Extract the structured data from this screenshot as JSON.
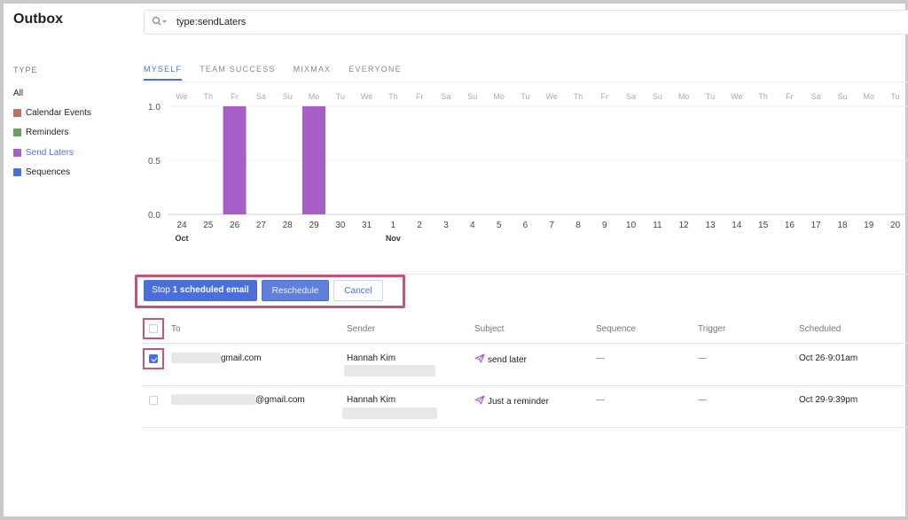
{
  "app": {
    "title": "Outbox"
  },
  "search": {
    "value": "type:sendLaters"
  },
  "sidebar": {
    "heading": "TYPE",
    "items": [
      {
        "label": "All",
        "color": ""
      },
      {
        "label": "Calendar Events",
        "color": "#c96a6a"
      },
      {
        "label": "Reminders",
        "color": "#6a9e63"
      },
      {
        "label": "Send Laters",
        "color": "#a55fc6"
      },
      {
        "label": "Sequences",
        "color": "#4a6fd8"
      }
    ]
  },
  "tabs": [
    "MYSELF",
    "TEAM SUCCESS",
    "MIXMAX",
    "EVERYONE"
  ],
  "chart_data": {
    "type": "bar",
    "categories": [
      "24",
      "25",
      "26",
      "27",
      "28",
      "29",
      "30",
      "31",
      "1",
      "2",
      "3",
      "4",
      "5",
      "6",
      "7",
      "8",
      "9",
      "10",
      "11",
      "12",
      "13",
      "14",
      "15",
      "16",
      "17",
      "18",
      "19",
      "20"
    ],
    "weekdays": [
      "We",
      "Th",
      "Fr",
      "Sa",
      "Su",
      "Mo",
      "Tu",
      "We",
      "Th",
      "Fr",
      "Sa",
      "Su",
      "Mo",
      "Tu",
      "We",
      "Th",
      "Fr",
      "Sa",
      "Su",
      "Mo",
      "Tu",
      "We",
      "Th",
      "Fr",
      "Sa",
      "Su",
      "Mo",
      "Tu"
    ],
    "month_labels": [
      {
        "index": 0,
        "label": "Oct"
      },
      {
        "index": 8,
        "label": "Nov"
      }
    ],
    "values": [
      0,
      0,
      1,
      0,
      0,
      1,
      0,
      0,
      0,
      0,
      0,
      0,
      0,
      0,
      0,
      0,
      0,
      0,
      0,
      0,
      0,
      0,
      0,
      0,
      0,
      0,
      0,
      0
    ],
    "yticks": [
      "1.0",
      "0.5",
      "0.0"
    ],
    "ylim": [
      0,
      1
    ],
    "bar_color": "#a55fc6"
  },
  "actions": {
    "stop_prefix": "Stop ",
    "stop_count": "1",
    "stop_suffix": " scheduled email",
    "reschedule": "Reschedule",
    "cancel": "Cancel"
  },
  "table": {
    "headers": [
      "To",
      "Sender",
      "Subject",
      "Sequence",
      "Trigger",
      "Scheduled"
    ],
    "rows": [
      {
        "checked": true,
        "to": "gmail.com",
        "sender": "Hannah Kim",
        "subject": "send later",
        "sequence": "—",
        "trigger": "—",
        "scheduled": "Oct 26·9:01am"
      },
      {
        "checked": false,
        "to": "@gmail.com",
        "sender": "Hannah Kim",
        "subject": "Just a reminder",
        "sequence": "—",
        "trigger": "—",
        "scheduled": "Oct 29·9:39pm"
      }
    ]
  }
}
